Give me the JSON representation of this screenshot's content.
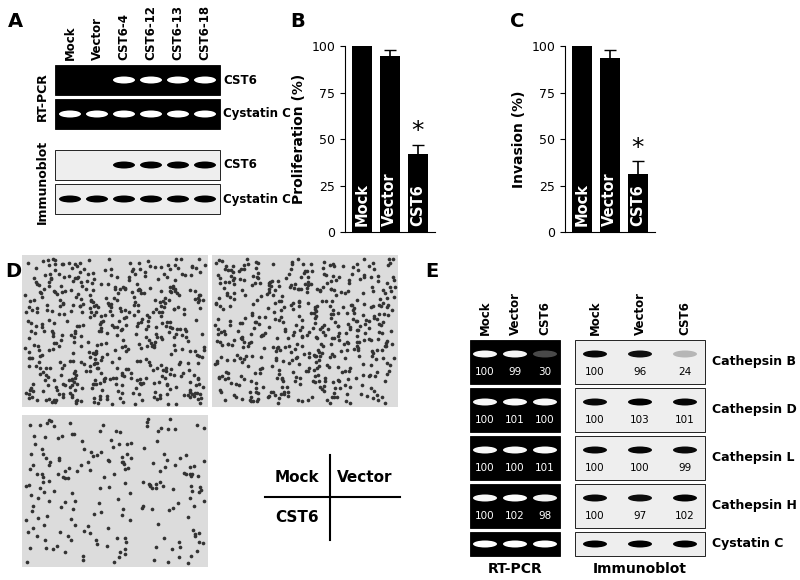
{
  "panel_A": {
    "label": "A",
    "lanes": [
      "Mock",
      "Vector",
      "CST6-4",
      "CST6-12",
      "CST6-13",
      "CST6-18"
    ],
    "groups": [
      {
        "name": "RT-PCR",
        "rows": [
          {
            "label": "CST6",
            "bands": [
              false,
              false,
              true,
              true,
              true,
              true
            ]
          },
          {
            "label": "Cystatin C",
            "bands": [
              true,
              true,
              true,
              true,
              true,
              true
            ]
          }
        ]
      },
      {
        "name": "Immunoblot",
        "rows": [
          {
            "label": "CST6",
            "bands": [
              false,
              false,
              true,
              true,
              true,
              true
            ]
          },
          {
            "label": "Cystatin C",
            "bands": [
              true,
              true,
              true,
              true,
              true,
              true
            ]
          }
        ]
      }
    ]
  },
  "chart_data": [
    {
      "panel_label": "B",
      "type": "bar",
      "categories": [
        "Mock",
        "Vector",
        "CST6"
      ],
      "values": [
        100,
        95,
        42
      ],
      "errors": [
        0,
        3,
        5
      ],
      "y_label": "Proliferation (%)",
      "ylim": [
        0,
        100
      ],
      "yticks": [
        0,
        25,
        50,
        75,
        100
      ],
      "color": "#000000",
      "tick_labels": "y",
      "annotations": [
        {
          "text": "*",
          "category": "CST6"
        }
      ]
    },
    {
      "panel_label": "C",
      "type": "bar",
      "categories": [
        "Mock",
        "Vector",
        "CST6"
      ],
      "values": [
        100,
        94,
        31
      ],
      "errors": [
        0,
        4,
        7
      ],
      "y_label": "Invasion (%)",
      "ylim": [
        0,
        100
      ],
      "yticks": [
        0,
        25,
        50,
        75,
        100
      ],
      "color": "#000000",
      "tick_labels": "y",
      "annotations": [
        {
          "text": "*",
          "category": "CST6"
        }
      ]
    }
  ],
  "panel_D": {
    "label": "D",
    "images": [
      "Mock",
      "Vector",
      "CST6"
    ]
  },
  "panel_E": {
    "label": "E",
    "lanes": [
      "Mock",
      "Vector",
      "CST6"
    ],
    "rows": [
      "Cathepsin B",
      "Cathepsin D",
      "Cathepsin L",
      "Cathepsin H",
      "Cystatin C"
    ],
    "groups": [
      {
        "name": "RT-PCR",
        "values": [
          [
            100,
            99,
            30
          ],
          [
            100,
            101,
            100
          ],
          [
            100,
            100,
            101
          ],
          [
            100,
            102,
            98
          ],
          null
        ]
      },
      {
        "name": "Immunoblot",
        "values": [
          [
            100,
            96,
            24
          ],
          [
            100,
            103,
            101
          ],
          [
            100,
            100,
            99
          ],
          [
            100,
            97,
            102
          ],
          null
        ]
      }
    ]
  }
}
